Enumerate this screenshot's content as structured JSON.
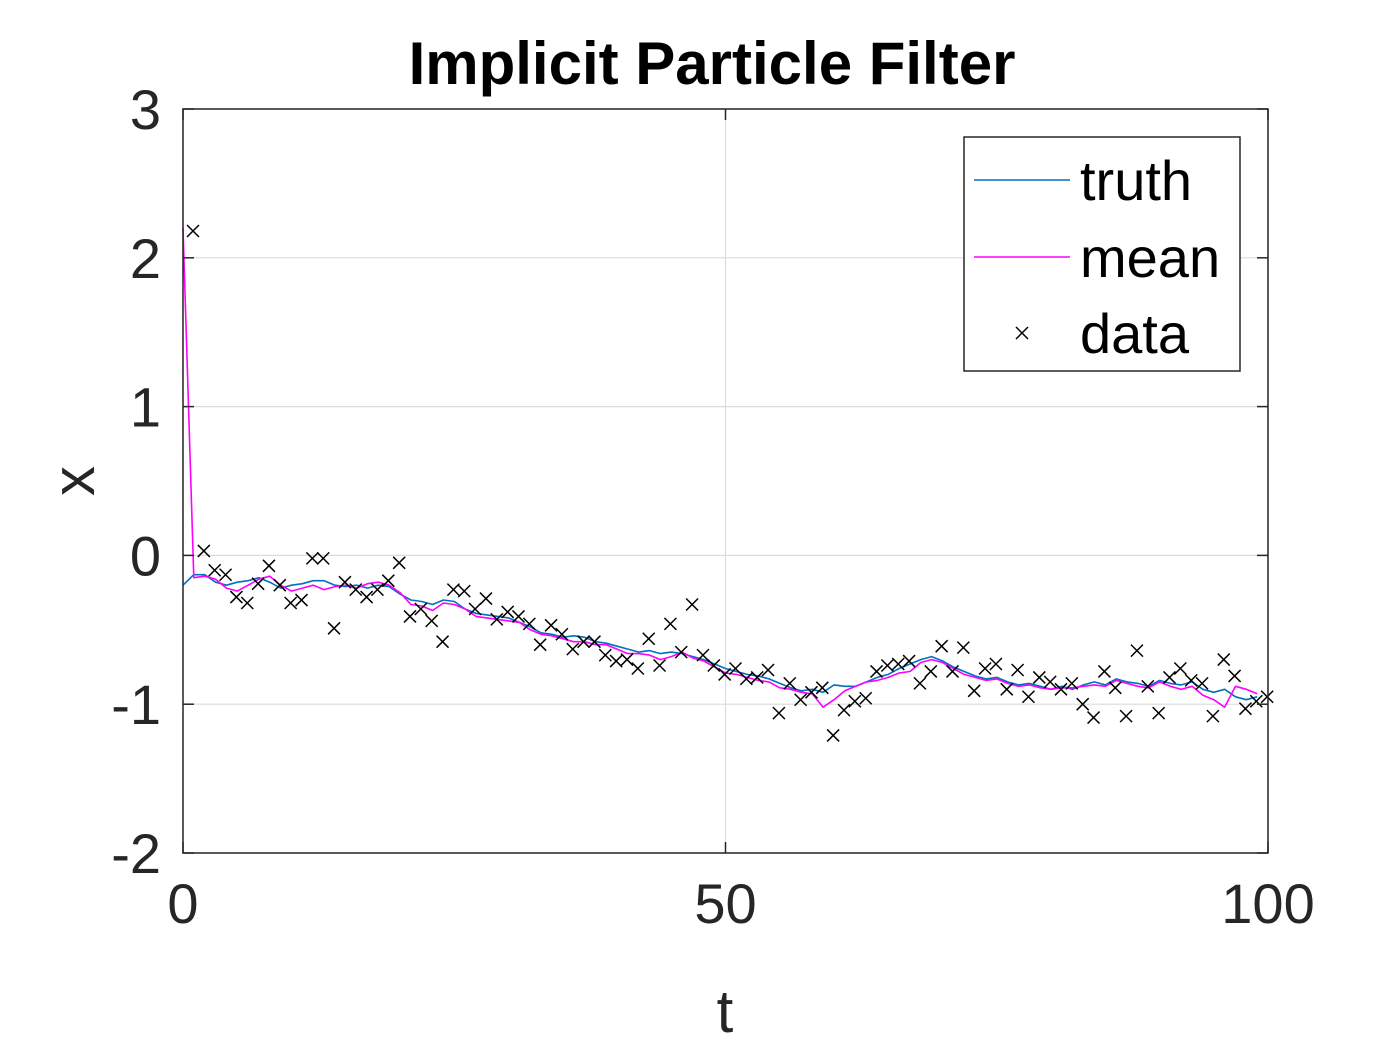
{
  "chart_data": {
    "type": "line",
    "title": "Implicit Particle Filter",
    "xlabel": "t",
    "ylabel": "x",
    "xlim": [
      0,
      100
    ],
    "ylim": [
      -2,
      3
    ],
    "xticks": [
      "0",
      "50",
      "100"
    ],
    "yticks": [
      "-2",
      "-1",
      "0",
      "1",
      "2",
      "3"
    ],
    "grid": true,
    "legend": {
      "placement": "top-right",
      "entries": [
        "truth",
        "mean",
        "data"
      ]
    },
    "colors": {
      "truth": "#0072BD",
      "mean": "#FF00FF",
      "data": "#000000"
    },
    "x": [
      0,
      1,
      2,
      3,
      4,
      5,
      6,
      7,
      8,
      9,
      10,
      11,
      12,
      13,
      14,
      15,
      16,
      17,
      18,
      19,
      20,
      21,
      22,
      23,
      24,
      25,
      26,
      27,
      28,
      29,
      30,
      31,
      32,
      33,
      34,
      35,
      36,
      37,
      38,
      39,
      40,
      41,
      42,
      43,
      44,
      45,
      46,
      47,
      48,
      49,
      50,
      51,
      52,
      53,
      54,
      55,
      56,
      57,
      58,
      59,
      60,
      61,
      62,
      63,
      64,
      65,
      66,
      67,
      68,
      69,
      70,
      71,
      72,
      73,
      74,
      75,
      76,
      77,
      78,
      79,
      80,
      81,
      82,
      83,
      84,
      85,
      86,
      87,
      88,
      89,
      90,
      91,
      92,
      93,
      94,
      95,
      96,
      97,
      98,
      99
    ],
    "series": [
      {
        "name": "truth",
        "style": "line",
        "values": [
          -0.2,
          -0.13,
          -0.13,
          -0.18,
          -0.2,
          -0.18,
          -0.17,
          -0.15,
          -0.18,
          -0.22,
          -0.2,
          -0.19,
          -0.17,
          -0.17,
          -0.2,
          -0.21,
          -0.2,
          -0.22,
          -0.2,
          -0.21,
          -0.26,
          -0.3,
          -0.31,
          -0.33,
          -0.3,
          -0.31,
          -0.36,
          -0.39,
          -0.4,
          -0.41,
          -0.42,
          -0.45,
          -0.48,
          -0.52,
          -0.53,
          -0.55,
          -0.54,
          -0.55,
          -0.58,
          -0.59,
          -0.61,
          -0.63,
          -0.65,
          -0.64,
          -0.66,
          -0.65,
          -0.66,
          -0.68,
          -0.7,
          -0.73,
          -0.76,
          -0.78,
          -0.8,
          -0.81,
          -0.83,
          -0.86,
          -0.89,
          -0.91,
          -0.9,
          -0.92,
          -0.87,
          -0.88,
          -0.88,
          -0.85,
          -0.82,
          -0.8,
          -0.76,
          -0.73,
          -0.7,
          -0.68,
          -0.71,
          -0.75,
          -0.78,
          -0.81,
          -0.83,
          -0.82,
          -0.85,
          -0.87,
          -0.86,
          -0.88,
          -0.9,
          -0.88,
          -0.9,
          -0.87,
          -0.85,
          -0.87,
          -0.83,
          -0.85,
          -0.86,
          -0.88,
          -0.84,
          -0.86,
          -0.87,
          -0.85,
          -0.9,
          -0.92,
          -0.9,
          -0.95,
          -0.97,
          -0.95
        ]
      },
      {
        "name": "mean",
        "style": "line",
        "values": [
          2.2,
          -0.15,
          -0.14,
          -0.16,
          -0.22,
          -0.24,
          -0.2,
          -0.16,
          -0.14,
          -0.2,
          -0.24,
          -0.22,
          -0.2,
          -0.23,
          -0.21,
          -0.2,
          -0.22,
          -0.19,
          -0.18,
          -0.2,
          -0.25,
          -0.33,
          -0.34,
          -0.37,
          -0.32,
          -0.33,
          -0.36,
          -0.41,
          -0.42,
          -0.43,
          -0.44,
          -0.45,
          -0.5,
          -0.53,
          -0.54,
          -0.56,
          -0.58,
          -0.58,
          -0.6,
          -0.6,
          -0.63,
          -0.66,
          -0.66,
          -0.67,
          -0.7,
          -0.68,
          -0.65,
          -0.69,
          -0.71,
          -0.75,
          -0.79,
          -0.8,
          -0.82,
          -0.84,
          -0.85,
          -0.89,
          -0.9,
          -0.92,
          -0.93,
          -1.02,
          -0.97,
          -0.91,
          -0.88,
          -0.85,
          -0.84,
          -0.82,
          -0.79,
          -0.78,
          -0.72,
          -0.7,
          -0.72,
          -0.76,
          -0.8,
          -0.82,
          -0.84,
          -0.83,
          -0.86,
          -0.88,
          -0.87,
          -0.89,
          -0.9,
          -0.89,
          -0.89,
          -0.88,
          -0.87,
          -0.88,
          -0.84,
          -0.86,
          -0.88,
          -0.89,
          -0.85,
          -0.88,
          -0.9,
          -0.88,
          -0.94,
          -0.97,
          -1.02,
          -0.88,
          -0.9,
          -0.93
        ]
      },
      {
        "name": "data",
        "style": "markers",
        "values": [
          2.18,
          0.03,
          -0.1,
          -0.13,
          -0.28,
          -0.32,
          -0.19,
          -0.07,
          -0.2,
          -0.32,
          -0.3,
          -0.02,
          -0.02,
          -0.49,
          -0.18,
          -0.23,
          -0.28,
          -0.23,
          -0.17,
          -0.05,
          -0.41,
          -0.36,
          -0.44,
          -0.58,
          -0.23,
          -0.24,
          -0.36,
          -0.29,
          -0.43,
          -0.38,
          -0.41,
          -0.46,
          -0.6,
          -0.47,
          -0.53,
          -0.63,
          -0.58,
          -0.58,
          -0.67,
          -0.71,
          -0.7,
          -0.76,
          -0.56,
          -0.74,
          -0.46,
          -0.65,
          -0.33,
          -0.67,
          -0.74,
          -0.8,
          -0.76,
          -0.83,
          -0.82,
          -0.77,
          -1.06,
          -0.86,
          -0.97,
          -0.92,
          -0.89,
          -1.21,
          -1.04,
          -0.98,
          -0.96,
          -0.78,
          -0.74,
          -0.73,
          -0.71,
          -0.86,
          -0.78,
          -0.61,
          -0.78,
          -0.62,
          -0.91,
          -0.76,
          -0.73,
          -0.9,
          -0.77,
          -0.95,
          -0.82,
          -0.85,
          -0.9,
          -0.86,
          -1.0,
          -1.09,
          -0.78,
          -0.89,
          -1.08,
          -0.64,
          -0.88,
          -1.06,
          -0.82,
          -0.76,
          -0.84,
          -0.86,
          -1.08,
          -0.7,
          -0.81,
          -1.03,
          -0.98,
          -0.95
        ]
      }
    ]
  }
}
